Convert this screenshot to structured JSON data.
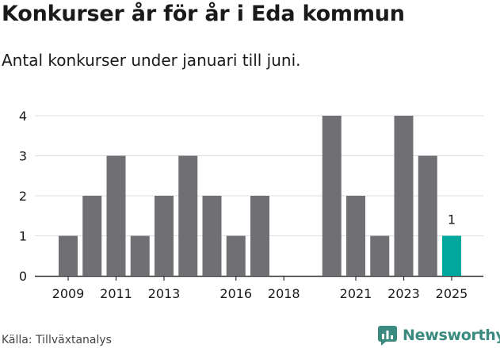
{
  "header": {
    "title": "Konkurser år för år i Eda kommun",
    "subtitle": "Antal konkurser under januari till juni."
  },
  "footer": {
    "source": "Källa: Tillväxtanalys",
    "brand": "Newsworthy"
  },
  "colors": {
    "bar": "#706f73",
    "highlight": "#00a79d",
    "grid": "#dddddd",
    "brand": "#3a8a7f"
  },
  "chart_data": {
    "type": "bar",
    "title": "Konkurser år för år i Eda kommun",
    "subtitle": "Antal konkurser under januari till juni.",
    "xlabel": "",
    "ylabel": "",
    "categories": [
      "2009",
      "2010",
      "2011",
      "2012",
      "2013",
      "2014",
      "2015",
      "2016",
      "2017",
      "2018",
      "2019",
      "2020",
      "2021",
      "2022",
      "2023",
      "2024",
      "2025"
    ],
    "values": [
      1,
      2,
      3,
      1,
      2,
      3,
      2,
      1,
      2,
      0,
      0,
      4,
      2,
      1,
      4,
      3,
      1
    ],
    "ylim": [
      0,
      4
    ],
    "yticks": [
      0,
      1,
      2,
      3,
      4
    ],
    "xtick_labels": [
      "2009",
      "2011",
      "2013",
      "2016",
      "2018",
      "2021",
      "2023",
      "2025"
    ],
    "highlight_category": "2025",
    "highlight_label": "1",
    "grid": true,
    "legend": "none"
  }
}
